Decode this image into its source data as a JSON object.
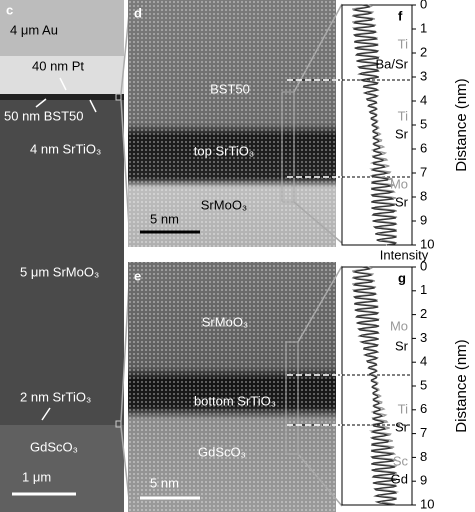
{
  "panel_c": {
    "label": "c",
    "annotations": [
      "4 μm Au",
      "40 nm Pt",
      "50 nm BST50",
      "4 nm SrTiO₃",
      "5 μm SrMoO₃",
      "2 nm SrTiO₃",
      "GdScO₃"
    ],
    "scale_bar": "1 μm"
  },
  "panel_d": {
    "label": "d",
    "annotations": [
      "BST50",
      "top SrTiO₃",
      "SrMoO₃"
    ],
    "scale_bar": "5 nm"
  },
  "panel_e": {
    "label": "e",
    "annotations": [
      "SrMoO₃",
      "bottom SrTiO₃",
      "GdScO₃"
    ],
    "scale_bar": "5 nm"
  },
  "panel_f": {
    "label": "f",
    "layers": [
      {
        "top": "Ti",
        "bottom": "Ba/Sr"
      },
      {
        "top": "Ti",
        "bottom": "Sr"
      },
      {
        "top": "Mo",
        "bottom": "Sr"
      }
    ],
    "yticks": [
      0,
      1,
      2,
      3,
      4,
      5,
      6,
      7,
      8,
      9,
      10
    ],
    "y_label": "Distance (nm)",
    "x_label": "Intensity"
  },
  "panel_g": {
    "label": "g",
    "layers": [
      {
        "top": "Mo",
        "bottom": "Sr"
      },
      {
        "top": "Ti",
        "bottom": "Sr"
      },
      {
        "top": "Sc",
        "bottom": "Gd"
      }
    ],
    "yticks": [
      0,
      1,
      2,
      3,
      4,
      5,
      6,
      7,
      8,
      9,
      10
    ],
    "y_label": "Distance (nm)"
  }
}
